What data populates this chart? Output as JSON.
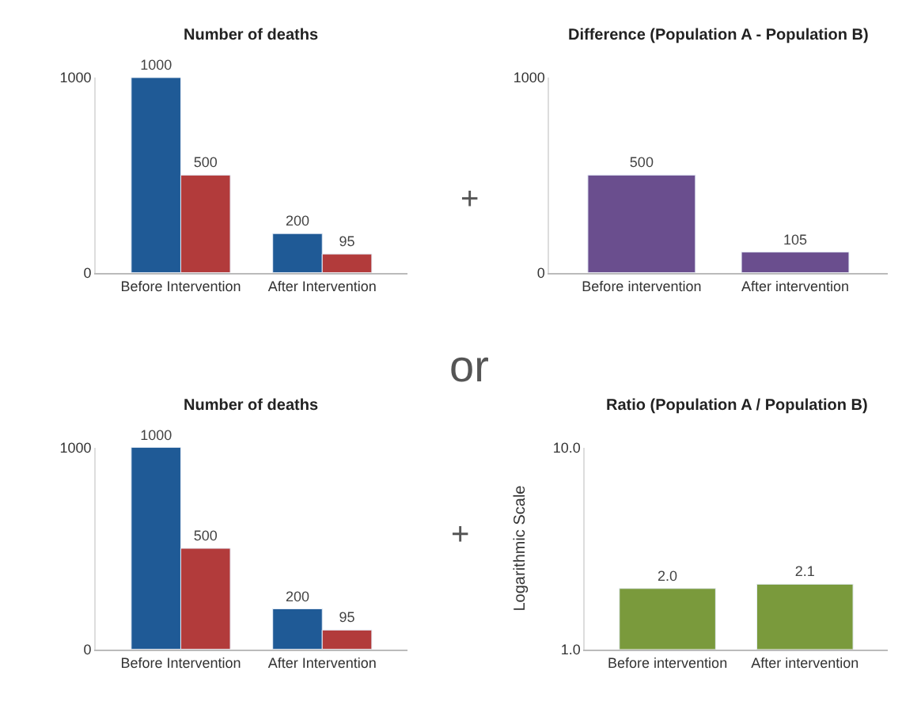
{
  "chart_data": [
    {
      "type": "bar",
      "title": "Number of deaths",
      "categories": [
        "Before Intervention",
        "After Intervention"
      ],
      "series": [
        {
          "color": "#1f5a96",
          "values": [
            1000,
            200
          ]
        },
        {
          "color": "#b23b3b",
          "values": [
            500,
            95
          ]
        }
      ],
      "ylim": [
        0,
        1000
      ],
      "yticks": [
        0,
        1000
      ],
      "data_labels": true,
      "annotations": [
        "+"
      ]
    },
    {
      "type": "bar",
      "title": "Difference (Population A - Population B)",
      "categories": [
        "Before intervention",
        "After intervention"
      ],
      "series": [
        {
          "color": "#6a4e8e",
          "values": [
            500,
            105
          ]
        }
      ],
      "ylim": [
        0,
        1000
      ],
      "yticks": [
        0,
        1000
      ],
      "data_labels": true
    },
    {
      "type": "bar",
      "title": "Number of deaths",
      "categories": [
        "Before Intervention",
        "After Intervention"
      ],
      "series": [
        {
          "color": "#1f5a96",
          "values": [
            1000,
            200
          ]
        },
        {
          "color": "#b23b3b",
          "values": [
            500,
            95
          ]
        }
      ],
      "ylim": [
        0,
        1000
      ],
      "yticks": [
        0,
        1000
      ],
      "data_labels": true,
      "annotations": [
        "or",
        "+"
      ]
    },
    {
      "type": "bar",
      "title": "Ratio (Population A / Population B)",
      "ylabel": "Logarithmic Scale",
      "categories": [
        "Before intervention",
        "After intervention"
      ],
      "series": [
        {
          "color": "#7a9a3c",
          "values": [
            2.0,
            2.1
          ],
          "value_labels": [
            "2.0",
            "2.1"
          ]
        }
      ],
      "log": true,
      "ylim": [
        1,
        10
      ],
      "yticks": [
        {
          "value": 1,
          "label": "1.0"
        },
        {
          "value": 10,
          "label": "10.0"
        }
      ]
    }
  ]
}
